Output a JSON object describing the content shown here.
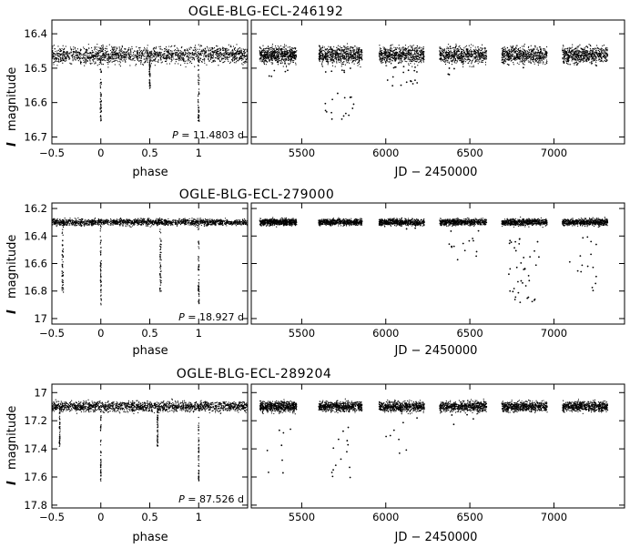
{
  "chart_data": [
    {
      "type": "scatter",
      "title": "OGLE-BLG-ECL-246192",
      "period_prefix": "P",
      "period_value": " = 11.4803 d",
      "ylabel_symbol": "I",
      "ylabel_text": "magnitude",
      "ylim": [
        16.72,
        16.36
      ],
      "yticks": [
        16.4,
        16.5,
        16.6,
        16.7
      ],
      "ytick_labels": [
        "16.4",
        "16.5",
        "16.6",
        "16.7"
      ],
      "phase_panel": {
        "xlabel": "phase",
        "xlim": [
          -0.5,
          1.5
        ],
        "xticks": [
          -0.5,
          0,
          0.5,
          1
        ],
        "xtick_labels": [
          "−0.5",
          "0",
          "0.5",
          "1"
        ],
        "baseline_mag": 16.462,
        "scatter_mag": 0.012,
        "eclipses": [
          {
            "phase": 0.0,
            "depth_mag": 16.655,
            "width": 0.012
          },
          {
            "phase": 0.5,
            "depth_mag": 16.56,
            "width": 0.012
          },
          {
            "phase": 1.0,
            "depth_mag": 16.655,
            "width": 0.012
          }
        ]
      },
      "time_panel": {
        "xlabel": "JD − 2450000",
        "xlim": [
          5200,
          7420
        ],
        "xticks": [
          5500,
          6000,
          6500,
          7000
        ],
        "xtick_labels": [
          "5500",
          "6000",
          "6500",
          "7000"
        ],
        "seasons": [
          {
            "start": 5250,
            "end": 5470,
            "dips": 6,
            "dip_max_mag": 16.55
          },
          {
            "start": 5600,
            "end": 5860,
            "dips": 22,
            "dip_max_mag": 16.65
          },
          {
            "start": 5960,
            "end": 6230,
            "dips": 20,
            "dip_max_mag": 16.56
          },
          {
            "start": 6320,
            "end": 6600,
            "dips": 4,
            "dip_max_mag": 16.52
          },
          {
            "start": 6690,
            "end": 6960,
            "dips": 3,
            "dip_max_mag": 16.5
          },
          {
            "start": 7050,
            "end": 7320,
            "dips": 3,
            "dip_max_mag": 16.5
          }
        ]
      }
    },
    {
      "type": "scatter",
      "title": "OGLE-BLG-ECL-279000",
      "period_prefix": "P",
      "period_value": " = 18.927 d",
      "ylabel_symbol": "I",
      "ylabel_text": "magnitude",
      "ylim": [
        17.04,
        16.16
      ],
      "yticks": [
        16.2,
        16.4,
        16.6,
        16.8,
        17.0
      ],
      "ytick_labels": [
        "16.2",
        "16.4",
        "16.6",
        "16.8",
        "17"
      ],
      "phase_panel": {
        "xlabel": "phase",
        "xlim": [
          -0.5,
          1.5
        ],
        "xticks": [
          -0.5,
          0,
          0.5,
          1
        ],
        "xtick_labels": [
          "−0.5",
          "0",
          "0.5",
          "1"
        ],
        "baseline_mag": 16.3,
        "scatter_mag": 0.012,
        "eclipses": [
          {
            "phase": -0.39,
            "depth_mag": 16.81,
            "width": 0.015
          },
          {
            "phase": 0.0,
            "depth_mag": 16.9,
            "width": 0.01
          },
          {
            "phase": 0.61,
            "depth_mag": 16.81,
            "width": 0.015
          },
          {
            "phase": 1.0,
            "depth_mag": 16.9,
            "width": 0.01
          }
        ]
      },
      "time_panel": {
        "xlabel": "JD − 2450000",
        "xlim": [
          5200,
          7420
        ],
        "xticks": [
          5500,
          6000,
          6500,
          7000
        ],
        "xtick_labels": [
          "5500",
          "6000",
          "6500",
          "7000"
        ],
        "seasons": [
          {
            "start": 5250,
            "end": 5470,
            "dips": 0,
            "dip_max_mag": 16.3
          },
          {
            "start": 5600,
            "end": 5860,
            "dips": 0,
            "dip_max_mag": 16.3
          },
          {
            "start": 5960,
            "end": 6230,
            "dips": 3,
            "dip_max_mag": 16.36
          },
          {
            "start": 6320,
            "end": 6600,
            "dips": 14,
            "dip_max_mag": 16.58
          },
          {
            "start": 6690,
            "end": 6960,
            "dips": 40,
            "dip_max_mag": 16.9
          },
          {
            "start": 7050,
            "end": 7320,
            "dips": 16,
            "dip_max_mag": 16.8
          }
        ]
      }
    },
    {
      "type": "scatter",
      "title": "OGLE-BLG-ECL-289204",
      "period_prefix": "P",
      "period_value": " = 87.526 d",
      "ylabel_symbol": "I",
      "ylabel_text": "magnitude",
      "ylim": [
        17.82,
        16.94
      ],
      "yticks": [
        17.0,
        17.2,
        17.4,
        17.6,
        17.8
      ],
      "ytick_labels": [
        "17",
        "17.2",
        "17.4",
        "17.6",
        "17.8"
      ],
      "phase_panel": {
        "xlabel": "phase",
        "xlim": [
          -0.5,
          1.5
        ],
        "xticks": [
          -0.5,
          0,
          0.5,
          1
        ],
        "xtick_labels": [
          "−0.5",
          "0",
          "0.5",
          "1"
        ],
        "baseline_mag": 17.1,
        "scatter_mag": 0.018,
        "eclipses": [
          {
            "phase": -0.42,
            "depth_mag": 17.39,
            "width": 0.008
          },
          {
            "phase": 0.0,
            "depth_mag": 17.63,
            "width": 0.006
          },
          {
            "phase": 0.58,
            "depth_mag": 17.39,
            "width": 0.008
          },
          {
            "phase": 1.0,
            "depth_mag": 17.63,
            "width": 0.006
          }
        ]
      },
      "time_panel": {
        "xlabel": "JD − 2450000",
        "xlim": [
          5200,
          7420
        ],
        "xticks": [
          5500,
          6000,
          6500,
          7000
        ],
        "xtick_labels": [
          "5500",
          "6000",
          "6500",
          "7000"
        ],
        "seasons": [
          {
            "start": 5250,
            "end": 5470,
            "dips": 8,
            "dip_max_mag": 17.62
          },
          {
            "start": 5600,
            "end": 5860,
            "dips": 14,
            "dip_max_mag": 17.62
          },
          {
            "start": 5960,
            "end": 6230,
            "dips": 8,
            "dip_max_mag": 17.45
          },
          {
            "start": 6320,
            "end": 6600,
            "dips": 4,
            "dip_max_mag": 17.25
          },
          {
            "start": 6690,
            "end": 6960,
            "dips": 0,
            "dip_max_mag": 17.1
          },
          {
            "start": 7050,
            "end": 7320,
            "dips": 0,
            "dip_max_mag": 17.1
          }
        ]
      }
    }
  ]
}
